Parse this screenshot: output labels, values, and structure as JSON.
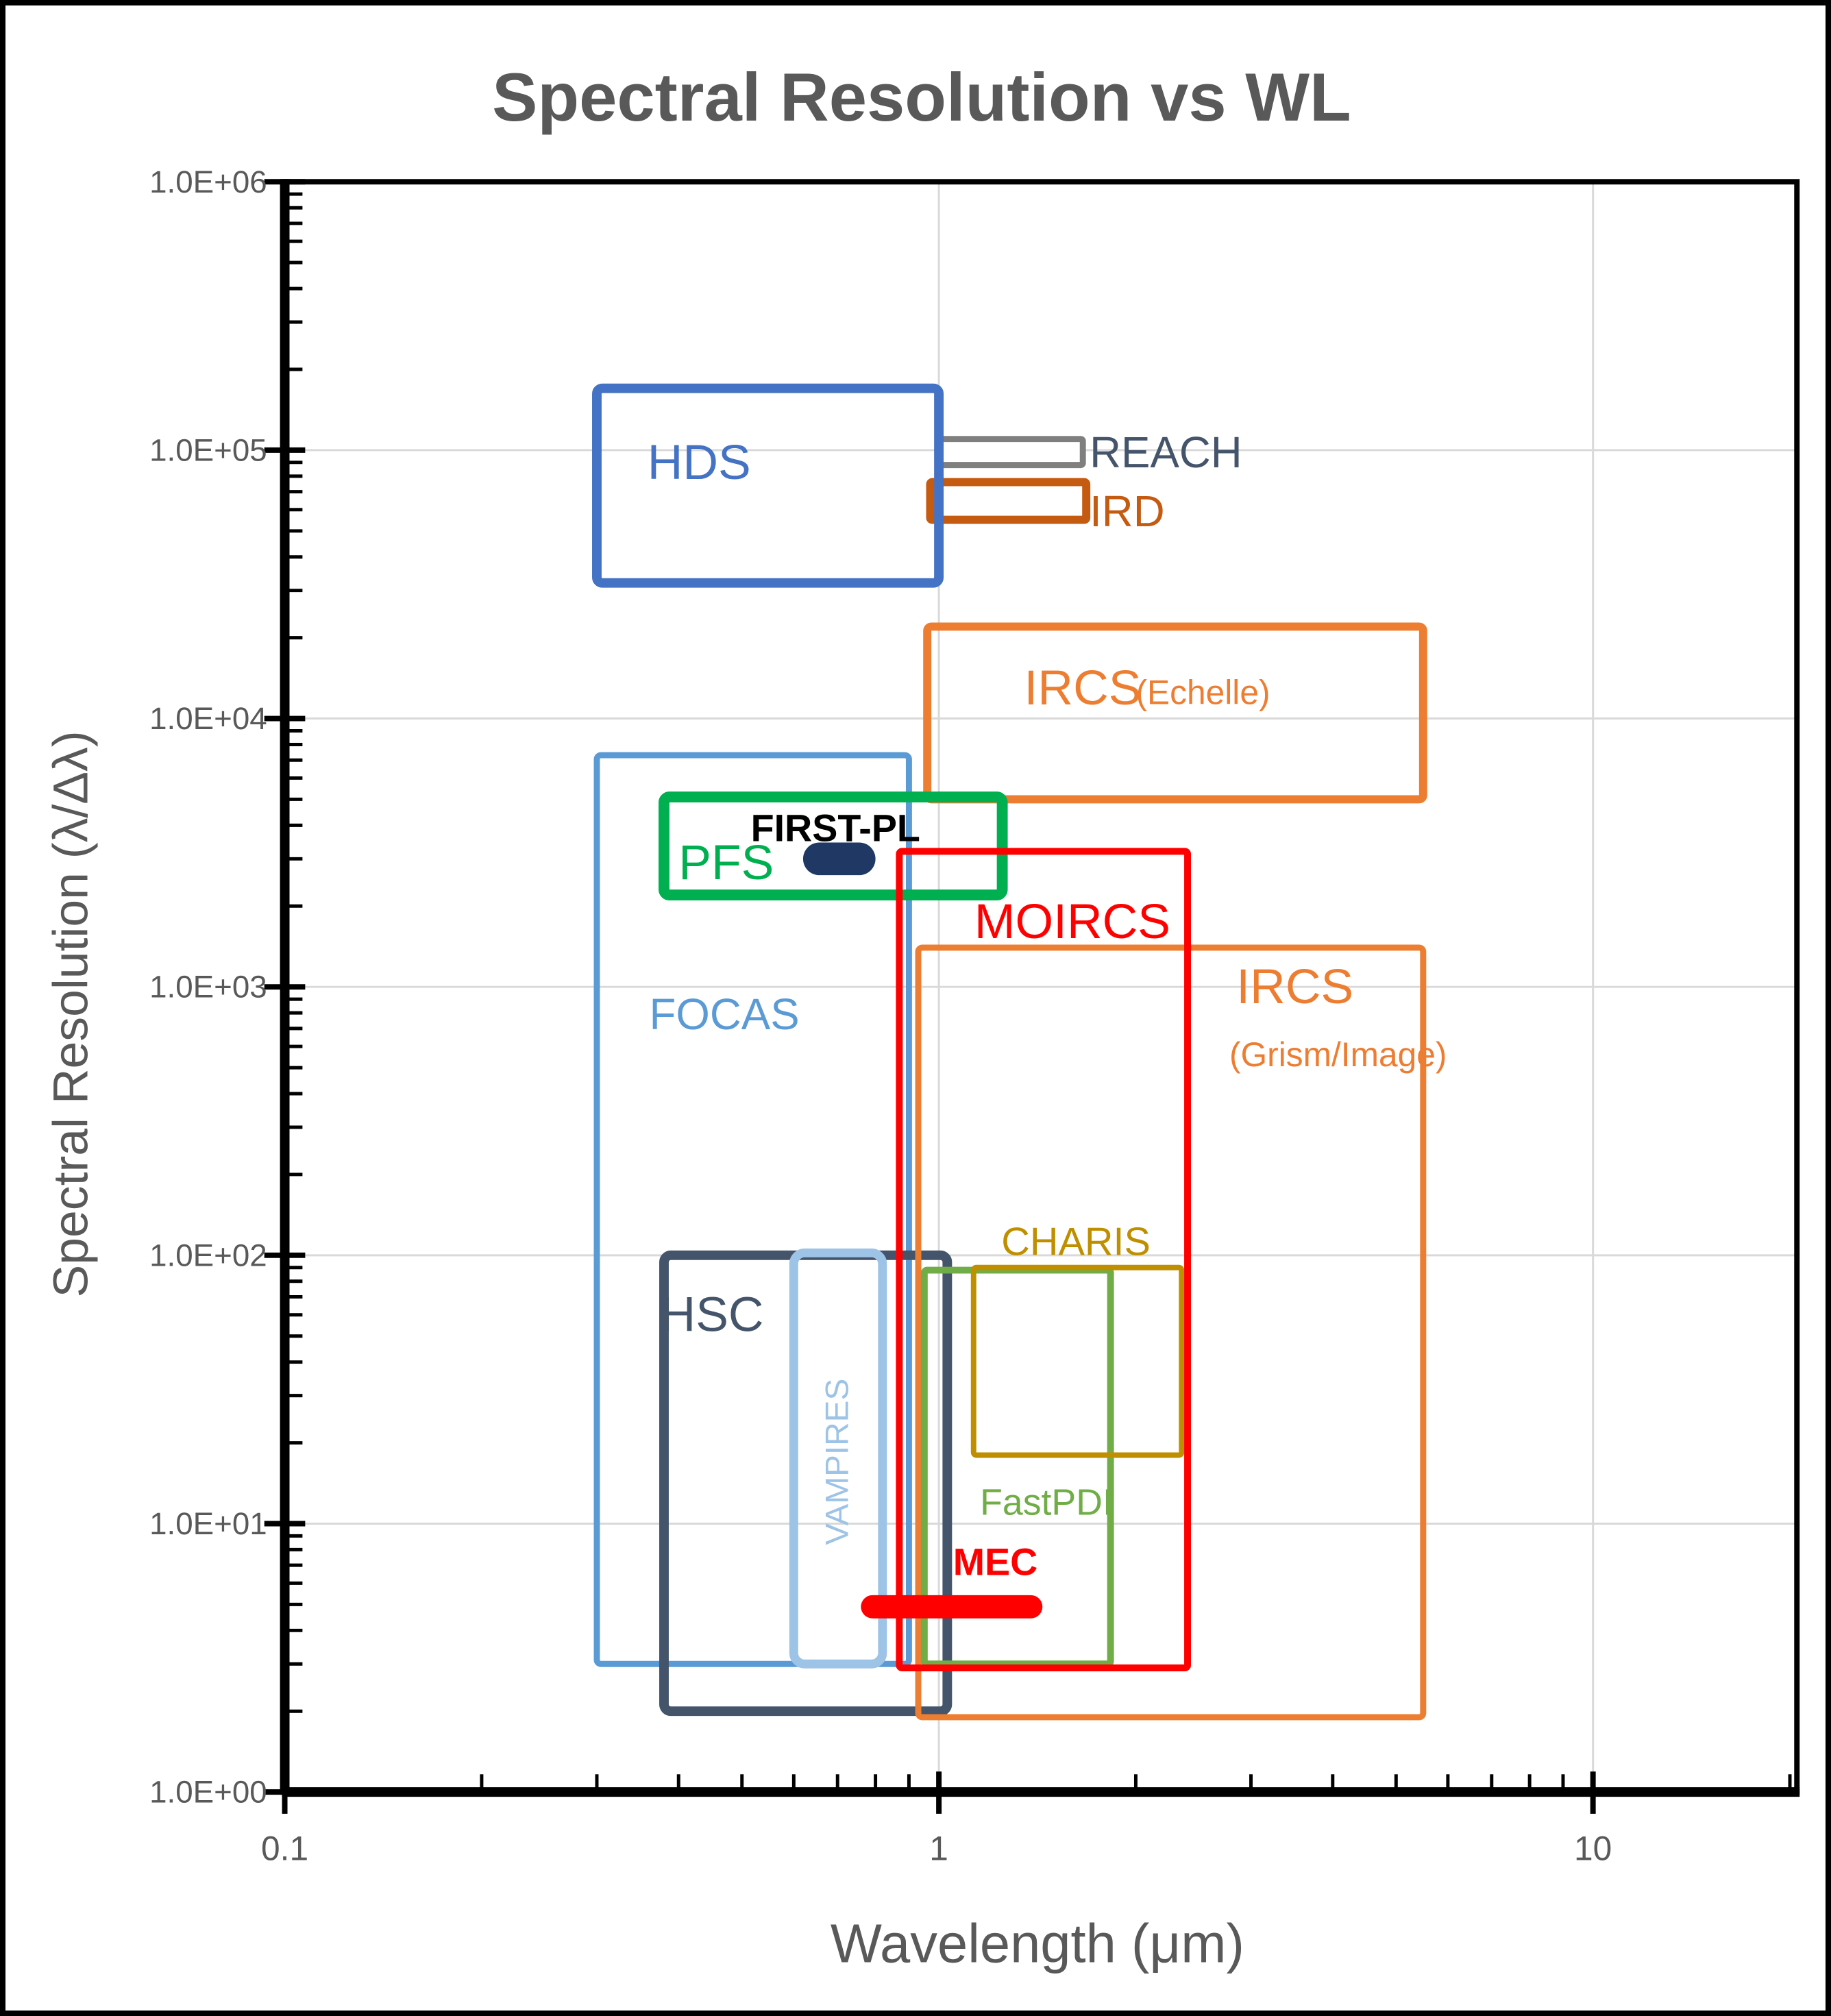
{
  "title": {
    "text": "Spectral Resolution vs WL",
    "color": "#595959"
  },
  "colors": {
    "title_gray": "#595959",
    "axis_text": "#595959",
    "gridline": "#D9D9D9",
    "axis_line": "#000000",
    "hds_blue": "#4472C4",
    "reach_gray": "#7F7F7F",
    "reach_label": "#44546A",
    "ird_rust": "#C55A11",
    "ircs_orange": "#ED7D31",
    "pfs_green": "#00B050",
    "firstpl_navy": "#1F3864",
    "focas_blue": "#5B9BD5",
    "moircs_red": "#FF0000",
    "hsc_slate": "#44546A",
    "vampires_lightblue": "#9DC3E6",
    "charis_darkyellow": "#BF8F00",
    "fastpdi_green": "#70AD47",
    "mec_red": "#FF0000"
  },
  "chart_data": {
    "type": "scatter",
    "subtype": "wavelength-resolution coverage rectangles",
    "title": "Spectral Resolution vs WL",
    "xlabel": "Wavelength (μm)",
    "ylabel": "Spectral Resolution (λ/Δλ)",
    "x_axis": {
      "scale": "log",
      "min": 0.1,
      "max": 20.5,
      "tick_values": [
        0.1,
        1,
        10
      ],
      "tick_labels": [
        "0.1",
        "1",
        "10"
      ],
      "gridlines": [
        1,
        10
      ]
    },
    "y_axis": {
      "scale": "log",
      "min": 1,
      "max": 1000000,
      "tick_values": [
        1,
        10,
        100,
        1000,
        10000,
        100000,
        1000000
      ],
      "tick_labels": [
        "1.0E+00",
        "1.0E+01",
        "1.0E+02",
        "1.0E+03",
        "1.0E+04",
        "1.0E+05",
        "1.0E+06"
      ],
      "gridlines": [
        10,
        100,
        1000,
        10000,
        100000
      ]
    },
    "instruments": [
      {
        "id": "focas",
        "name": "FOCAS",
        "shape": "rect",
        "x_range": [
          0.3,
          0.9
        ],
        "y_range": [
          3,
          7300
        ],
        "color": "#5B9BD5",
        "stroke_width": 9,
        "corner_radius": 6,
        "fill": "none",
        "labels": [
          {
            "text": "FOCAS",
            "x": 0.47,
            "y": 790,
            "size": 64,
            "anchor": "middle"
          }
        ]
      },
      {
        "id": "hsc",
        "name": "HSC",
        "shape": "rect",
        "x_range": [
          0.38,
          1.03
        ],
        "y_range": [
          2,
          100
        ],
        "color": "#44546A",
        "stroke_width": 14,
        "corner_radius": 10,
        "fill": "none",
        "labels": [
          {
            "text": "HSC",
            "x": 0.45,
            "y": 60,
            "size": 72,
            "anchor": "middle"
          }
        ]
      },
      {
        "id": "vampires",
        "name": "VAMPIRES",
        "shape": "rect",
        "x_range": [
          0.6,
          0.82
        ],
        "y_range": [
          3,
          102
        ],
        "color": "#9DC3E6",
        "stroke_width": 13,
        "corner_radius": 16,
        "fill": "none",
        "labels": [
          {
            "text": "VAMPIRES",
            "x": 0.7,
            "y": 17,
            "size": 48,
            "anchor": "middle",
            "rotate": -90
          }
        ]
      },
      {
        "id": "reach",
        "name": "REACH",
        "shape": "rect",
        "x_range": [
          1.0,
          1.66
        ],
        "y_range": [
          88000,
          110000
        ],
        "color": "#7F7F7F",
        "stroke_width": 9,
        "corner_radius": 3,
        "fill": "#FFFFFF",
        "labels": [
          {
            "text": "REACH",
            "x": 1.7,
            "y": 98000,
            "size": 64,
            "anchor": "start",
            "color": "#44546A"
          }
        ]
      },
      {
        "id": "ird",
        "name": "IRD",
        "shape": "rect",
        "x_range": [
          0.97,
          1.68
        ],
        "y_range": [
          55000,
          76000
        ],
        "color": "#C55A11",
        "stroke_width": 12,
        "corner_radius": 3,
        "fill": "#FFFFFF",
        "labels": [
          {
            "text": "IRD",
            "x": 1.7,
            "y": 59000,
            "size": 64,
            "anchor": "start"
          }
        ]
      },
      {
        "id": "hds",
        "name": "HDS",
        "shape": "rect",
        "x_range": [
          0.3,
          1.0
        ],
        "y_range": [
          32000,
          170000
        ],
        "color": "#4472C4",
        "stroke_width": 14,
        "corner_radius": 8,
        "fill": "none",
        "labels": [
          {
            "text": "HDS",
            "x": 0.43,
            "y": 90000,
            "size": 72,
            "anchor": "middle"
          }
        ]
      },
      {
        "id": "ircs-echelle",
        "name": "IRCS (Echelle)",
        "shape": "rect",
        "x_range": [
          0.96,
          5.5
        ],
        "y_range": [
          5000,
          22000
        ],
        "color": "#ED7D31",
        "stroke_width": 12,
        "corner_radius": 6,
        "fill": "none",
        "labels": [
          {
            "text": "IRCS",
            "x": 1.35,
            "y": 13000,
            "size": 72,
            "anchor": "start"
          },
          {
            "text": "(Echelle)",
            "x": 2.0,
            "y": 12500,
            "size": 50,
            "anchor": "start"
          }
        ]
      },
      {
        "id": "ircs-grism",
        "name": "IRCS (Grism/Image)",
        "shape": "rect",
        "x_range": [
          0.93,
          5.5
        ],
        "y_range": [
          1.9,
          1400
        ],
        "color": "#ED7D31",
        "stroke_width": 9,
        "corner_radius": 6,
        "fill": "none",
        "labels": [
          {
            "text": "IRCS",
            "x": 2.85,
            "y": 1000,
            "size": 72,
            "anchor": "start"
          },
          {
            "text": "(Grism/Image)",
            "x": 2.78,
            "y": 560,
            "size": 50,
            "anchor": "start"
          }
        ]
      },
      {
        "id": "pfs",
        "name": "PFS",
        "shape": "rect",
        "x_range": [
          0.38,
          1.25
        ],
        "y_range": [
          2200,
          5100
        ],
        "color": "#00B050",
        "stroke_width": 16,
        "corner_radius": 8,
        "fill": "none",
        "labels": [
          {
            "text": "PFS",
            "x": 0.4,
            "y": 2900,
            "size": 72,
            "anchor": "start"
          }
        ]
      },
      {
        "id": "fastpdi",
        "name": "FastPDI",
        "shape": "rect",
        "x_range": [
          0.95,
          1.83
        ],
        "y_range": [
          3,
          88
        ],
        "color": "#70AD47",
        "stroke_width": 10,
        "corner_radius": 4,
        "fill": "none",
        "labels": [
          {
            "text": "FastPDI",
            "x": 1.46,
            "y": 12,
            "size": 54,
            "anchor": "middle"
          }
        ]
      },
      {
        "id": "charis",
        "name": "CHARIS",
        "shape": "rect",
        "x_range": [
          1.13,
          2.35
        ],
        "y_range": [
          18,
          90
        ],
        "color": "#BF8F00",
        "stroke_width": 8,
        "corner_radius": 4,
        "fill": "none",
        "labels": [
          {
            "text": "CHARIS",
            "x": 1.62,
            "y": 112,
            "size": 58,
            "anchor": "middle"
          }
        ]
      },
      {
        "id": "moircs",
        "name": "MOIRCS",
        "shape": "rect",
        "x_range": [
          0.87,
          2.4
        ],
        "y_range": [
          2.9,
          3200
        ],
        "color": "#FF0000",
        "stroke_width": 10,
        "corner_radius": 4,
        "fill": "none",
        "labels": [
          {
            "text": "MOIRCS",
            "x": 1.6,
            "y": 1750,
            "size": 72,
            "anchor": "middle"
          }
        ]
      },
      {
        "id": "mec",
        "name": "MEC",
        "shape": "hbar",
        "x_range": [
          0.76,
          1.44
        ],
        "y_center": 4.9,
        "thickness_px": 34,
        "color": "#FF0000",
        "labels": [
          {
            "text": "MEC",
            "x": 1.22,
            "y": 7.2,
            "size": 56,
            "anchor": "middle",
            "weight": 700
          }
        ]
      },
      {
        "id": "first-pl",
        "name": "FIRST-PL",
        "shape": "hbar",
        "x_range": [
          0.62,
          0.8
        ],
        "y_center": 3000,
        "thickness_px": 48,
        "color": "#1F3864",
        "labels": [
          {
            "text": "FIRST-PL",
            "x": 0.695,
            "y": 3900,
            "size": 56,
            "anchor": "middle",
            "weight": 700,
            "color": "#000000"
          }
        ]
      }
    ]
  }
}
